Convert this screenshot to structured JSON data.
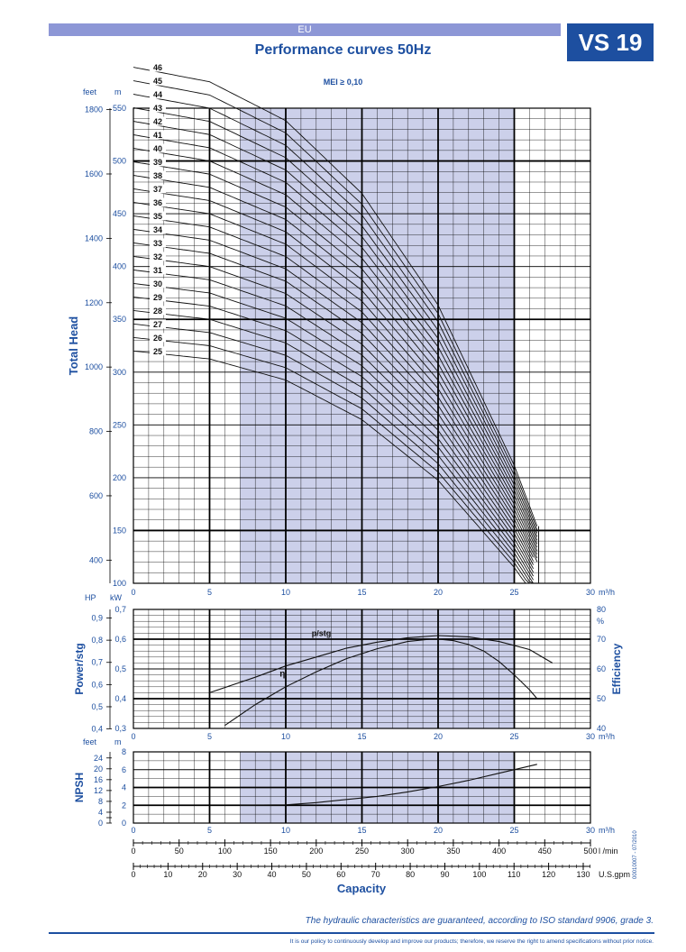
{
  "header": {
    "region": "EU",
    "model": "VS 19",
    "title": "Performance curves 50Hz",
    "mei": "MEI ≥ 0,10"
  },
  "footer": {
    "guarantee": "The hydraulic characteristics are guaranteed, according to ISO standard 9906, grade 3.",
    "disclaimer": "It is our policy to continuously develop and improve our products; therefore, we reserve the right to amend specifications without prior notice.",
    "code": "00010007 - 07/2010"
  },
  "colors": {
    "shade": "#ccd0ea",
    "accent": "#1d4fa0",
    "curve": "#111111"
  },
  "chart_data": [
    {
      "type": "line",
      "name": "head",
      "xlabel": "m³/h",
      "ylabel": "Total Head",
      "unit_left": "feet",
      "unit_right": "m",
      "xlim": [
        0,
        30
      ],
      "ylim": [
        100,
        550
      ],
      "xticks": [
        0,
        5,
        10,
        15,
        20,
        25,
        30
      ],
      "yticks_m": [
        100,
        150,
        200,
        250,
        300,
        350,
        400,
        450,
        500,
        550
      ],
      "yticks_ft": [
        400,
        600,
        800,
        1000,
        1200,
        1400,
        1600,
        1800
      ],
      "shade_x": [
        7,
        25
      ],
      "stage_labels": [
        "25",
        "26",
        "27",
        "28",
        "29",
        "30",
        "31",
        "32",
        "33",
        "34",
        "35",
        "36",
        "37",
        "38",
        "39",
        "40",
        "41",
        "42",
        "43",
        "44",
        "45",
        "46"
      ],
      "stages_first": 25,
      "stages_last": 46,
      "per_stage_head_m": [
        [
          0,
          12.8
        ],
        [
          5,
          12.5
        ],
        [
          10,
          11.7
        ],
        [
          15,
          10.2
        ],
        [
          20,
          7.9
        ],
        [
          25,
          4.6
        ],
        [
          26.5,
          3.35
        ]
      ],
      "stage_end_x": [
        26.4,
        26.6
      ]
    },
    {
      "type": "line",
      "name": "power-efficiency",
      "ylabel": "Power/stg",
      "ylabel_right": "Efficiency",
      "unit_left": "HP",
      "unit_mid": "kW",
      "unit_right": "%",
      "xlim": [
        0,
        30
      ],
      "ylim_kw": [
        0.3,
        0.7
      ],
      "yticks_kw": [
        "0,3",
        "0,4",
        "0,5",
        "0,6",
        "0,7"
      ],
      "yticks_hp": [
        "0,4",
        "0,5",
        "0,6",
        "0,7",
        "0,8",
        "0,9"
      ],
      "yticks_eff": [
        "40",
        "50",
        "60",
        "70",
        "80"
      ],
      "series": [
        {
          "name": "p/stg",
          "x": [
            5,
            8,
            10,
            12,
            14,
            16,
            18,
            20,
            22,
            24,
            26,
            27.5
          ],
          "y": [
            0.42,
            0.472,
            0.51,
            0.54,
            0.57,
            0.59,
            0.605,
            0.612,
            0.608,
            0.592,
            0.565,
            0.52
          ]
        },
        {
          "name": "η",
          "x": [
            6,
            8,
            10,
            12,
            14,
            16,
            18,
            19.5,
            20,
            21,
            22,
            23,
            24,
            25,
            26,
            26.5
          ],
          "y": [
            41,
            48,
            54,
            59,
            63.5,
            66.8,
            69.2,
            70,
            70,
            69.5,
            68.2,
            66,
            62.5,
            58,
            53,
            50
          ]
        }
      ]
    },
    {
      "type": "line",
      "name": "npsh",
      "ylabel": "NPSH",
      "unit_left": "feet",
      "unit_right": "m",
      "xlim": [
        0,
        30
      ],
      "ylim_m": [
        0,
        8
      ],
      "yticks_m": [
        "0",
        "2",
        "4",
        "6",
        "8"
      ],
      "yticks_ft": [
        "0",
        "2",
        "4",
        "6",
        "8",
        "10",
        "12",
        "14",
        "16",
        "18",
        "20",
        "22",
        "24"
      ],
      "series": [
        {
          "name": "NPSH",
          "x": [
            7,
            10,
            12,
            14,
            16,
            18,
            20,
            22,
            24,
            26.5
          ],
          "y": [
            2.0,
            2.05,
            2.3,
            2.65,
            3.0,
            3.5,
            4.1,
            4.8,
            5.6,
            6.6
          ]
        }
      ]
    },
    {
      "type": "axes",
      "name": "capacity",
      "xlabel": "Capacity",
      "scales": [
        {
          "unit": "m³/h",
          "ticks": [
            "0",
            "5",
            "10",
            "15",
            "20",
            "25",
            "30"
          ]
        },
        {
          "unit": "l /min",
          "ticks": [
            "0",
            "50",
            "100",
            "150",
            "200",
            "250",
            "300",
            "350",
            "400",
            "450",
            "500"
          ]
        },
        {
          "unit": "U.S.gpm",
          "ticks": [
            "0",
            "10",
            "20",
            "30",
            "40",
            "50",
            "60",
            "70",
            "80",
            "90",
            "100",
            "110",
            "120",
            "130"
          ]
        }
      ]
    }
  ]
}
